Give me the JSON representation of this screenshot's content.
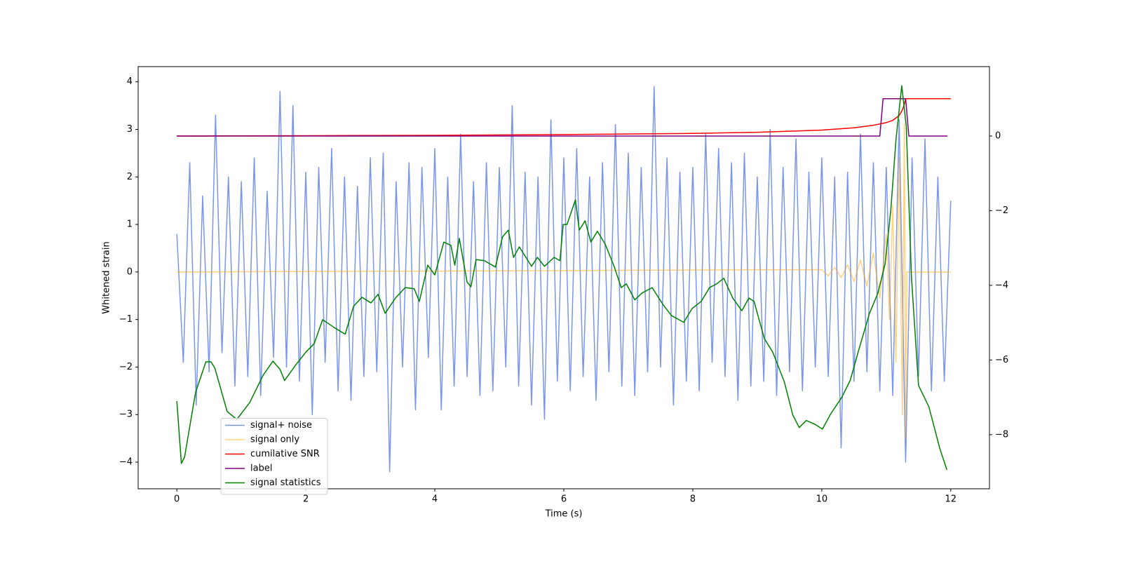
{
  "chart_data": {
    "type": "line",
    "xlabel": "Time (s)",
    "ylabel": "Whitened strain",
    "xlim": [
      -0.6,
      12.6
    ],
    "ylim": [
      -4.56,
      4.32
    ],
    "y2lim": [
      -9.45,
      1.86
    ],
    "xticks": [
      0,
      2,
      4,
      6,
      8,
      10,
      12
    ],
    "yticks": [
      {
        "value": -4,
        "label": "−4"
      },
      {
        "value": -3,
        "label": "−3"
      },
      {
        "value": -2,
        "label": "−2"
      },
      {
        "value": -1,
        "label": "−1"
      },
      0,
      1,
      2,
      3,
      4
    ],
    "y2ticks": [
      {
        "value": -8,
        "label": "−8"
      },
      {
        "value": -6,
        "label": "−6"
      },
      {
        "value": -4,
        "label": "−4"
      },
      {
        "value": -2,
        "label": "−2"
      },
      0
    ],
    "legend": "lower left",
    "series": [
      {
        "name": "signal+ noise",
        "color": "#4169e1",
        "alpha": 0.7,
        "x": [
          0,
          0.1,
          0.2,
          0.3,
          0.4,
          0.5,
          0.6,
          0.7,
          0.8,
          0.9,
          1,
          1.1,
          1.2,
          1.3,
          1.4,
          1.5,
          1.6,
          1.7,
          1.8,
          1.9,
          2,
          2.1,
          2.2,
          2.3,
          2.4,
          2.5,
          2.6,
          2.7,
          2.8,
          2.9,
          3,
          3.1,
          3.2,
          3.3,
          3.4,
          3.5,
          3.6,
          3.7,
          3.8,
          3.9,
          4,
          4.1,
          4.2,
          4.3,
          4.4,
          4.5,
          4.6,
          4.7,
          4.8,
          4.9,
          5,
          5.1,
          5.2,
          5.3,
          5.4,
          5.5,
          5.6,
          5.7,
          5.8,
          5.9,
          6,
          6.1,
          6.2,
          6.3,
          6.4,
          6.5,
          6.6,
          6.7,
          6.8,
          6.9,
          7,
          7.1,
          7.2,
          7.3,
          7.4,
          7.5,
          7.6,
          7.7,
          7.8,
          7.9,
          8,
          8.1,
          8.2,
          8.3,
          8.4,
          8.5,
          8.6,
          8.7,
          8.8,
          8.9,
          9,
          9.1,
          9.2,
          9.3,
          9.4,
          9.5,
          9.6,
          9.7,
          9.8,
          9.9,
          10,
          10.1,
          10.2,
          10.3,
          10.4,
          10.5,
          10.6,
          10.7,
          10.8,
          10.9,
          11,
          11.1,
          11.2,
          11.3,
          11.4,
          11.5,
          11.6,
          11.7,
          11.8,
          11.9,
          12
        ],
        "values": [
          0.8,
          -1.9,
          2.3,
          -2.8,
          1.6,
          -2.1,
          3.3,
          -1.7,
          2.0,
          -2.4,
          1.9,
          -2.2,
          2.4,
          -2.6,
          1.7,
          -1.8,
          3.8,
          -2.0,
          3.5,
          -2.3,
          2.1,
          -3.0,
          2.2,
          -1.9,
          2.6,
          -2.5,
          2.0,
          -2.7,
          1.8,
          -2.2,
          2.4,
          -2.1,
          2.5,
          -4.2,
          1.9,
          -2.0,
          2.3,
          -2.9,
          2.2,
          -1.8,
          2.6,
          -2.9,
          2.0,
          -2.4,
          2.9,
          -2.2,
          1.9,
          -2.6,
          2.3,
          -2.5,
          2.2,
          -2.0,
          3.5,
          -2.4,
          2.1,
          -2.8,
          2.0,
          -3.1,
          3.2,
          -2.3,
          2.4,
          -2.5,
          2.6,
          -2.2,
          2.0,
          -2.7,
          2.3,
          -2.1,
          3.1,
          -2.4,
          2.5,
          -2.6,
          2.2,
          -2.1,
          3.9,
          -2.0,
          2.4,
          -2.8,
          2.1,
          -2.3,
          2.2,
          -2.5,
          2.9,
          -1.9,
          2.6,
          -2.2,
          2.3,
          -2.7,
          2.5,
          -2.4,
          2.0,
          -2.3,
          3.0,
          -2.6,
          2.2,
          -2.1,
          2.8,
          -2.5,
          2.1,
          -2.0,
          2.4,
          -2.2,
          2.0,
          -3.7,
          2.1,
          -2.3,
          2.9,
          -2.1,
          2.3,
          -2.5,
          2.2,
          -2.6,
          3.2,
          -4.0,
          2.4,
          -2.2,
          2.8,
          -2.5,
          2.0,
          -2.3,
          1.5
        ]
      },
      {
        "name": "signal only",
        "color": "#ffa500",
        "alpha": 0.5,
        "x": [
          0,
          10.0,
          10.1,
          10.2,
          10.3,
          10.4,
          10.5,
          10.6,
          10.7,
          10.8,
          10.9,
          11.0,
          11.05,
          11.1,
          11.15,
          11.2,
          11.25,
          11.28,
          11.3,
          11.32,
          12
        ],
        "values": [
          0,
          0.05,
          -0.08,
          0.1,
          -0.12,
          0.15,
          -0.2,
          0.25,
          -0.3,
          0.4,
          -0.55,
          0.8,
          -1.0,
          1.4,
          -1.9,
          2.4,
          -3.0,
          3.1,
          -3.5,
          0,
          0
        ]
      },
      {
        "name": "cumilative SNR",
        "color": "#ff0000",
        "alpha": 1,
        "axis": "y2",
        "x": [
          0,
          2,
          4,
          6,
          8,
          9,
          10,
          10.5,
          10.8,
          11,
          11.1,
          11.2,
          11.25,
          11.28,
          11.3,
          12
        ],
        "values": [
          0,
          0.01,
          0.02,
          0.04,
          0.07,
          0.1,
          0.16,
          0.22,
          0.29,
          0.36,
          0.42,
          0.55,
          0.7,
          0.85,
          1.0,
          1.0
        ]
      },
      {
        "name": "label",
        "color": "#800080",
        "alpha": 1,
        "axis": "y2",
        "x": [
          0,
          10.9,
          10.95,
          11.3,
          11.35,
          11.95
        ],
        "values": [
          0,
          0,
          1,
          1,
          0,
          0
        ]
      },
      {
        "name": "signal statistics",
        "color": "#008000",
        "alpha": 1,
        "axis": "y2",
        "x": [
          0,
          0.07,
          0.12,
          0.29,
          0.45,
          0.53,
          0.59,
          0.78,
          0.93,
          1.13,
          1.34,
          1.49,
          1.6,
          1.67,
          1.84,
          2.0,
          2.13,
          2.26,
          2.44,
          2.61,
          2.74,
          2.87,
          3.01,
          3.12,
          3.23,
          3.39,
          3.54,
          3.68,
          3.76,
          3.89,
          4.0,
          4.14,
          4.25,
          4.31,
          4.38,
          4.5,
          4.56,
          4.64,
          4.77,
          4.94,
          5.05,
          5.14,
          5.22,
          5.31,
          5.5,
          5.59,
          5.7,
          5.85,
          5.94,
          5.99,
          6.05,
          6.18,
          6.24,
          6.33,
          6.42,
          6.52,
          6.64,
          6.78,
          6.89,
          6.97,
          7.1,
          7.21,
          7.37,
          7.54,
          7.67,
          7.86,
          7.99,
          8.13,
          8.26,
          8.37,
          8.48,
          8.62,
          8.76,
          8.87,
          8.95,
          9.11,
          9.24,
          9.42,
          9.55,
          9.65,
          9.76,
          9.89,
          10.01,
          10.14,
          10.31,
          10.44,
          10.58,
          10.74,
          10.87,
          10.98,
          11.07,
          11.15,
          11.24,
          11.31,
          11.39,
          11.5,
          11.66,
          11.83,
          11.94
        ],
        "values": [
          -7.1,
          -8.77,
          -8.6,
          -6.87,
          -6.05,
          -6.05,
          -6.22,
          -7.38,
          -7.59,
          -7.14,
          -6.4,
          -6.03,
          -6.25,
          -6.55,
          -6.14,
          -5.79,
          -5.56,
          -4.92,
          -5.13,
          -5.31,
          -4.56,
          -4.32,
          -4.47,
          -4.24,
          -4.75,
          -4.34,
          -4.06,
          -4.09,
          -4.43,
          -3.46,
          -3.72,
          -2.84,
          -2.93,
          -3.46,
          -2.74,
          -3.91,
          -4.04,
          -3.31,
          -3.34,
          -3.51,
          -2.7,
          -2.52,
          -3.25,
          -2.97,
          -3.49,
          -3.25,
          -3.49,
          -3.25,
          -3.34,
          -2.37,
          -2.37,
          -1.71,
          -2.52,
          -2.27,
          -2.84,
          -2.55,
          -2.89,
          -3.49,
          -4.06,
          -3.96,
          -4.39,
          -4.21,
          -4.06,
          -4.52,
          -4.81,
          -4.99,
          -4.62,
          -4.43,
          -4.06,
          -3.96,
          -3.81,
          -4.34,
          -4.68,
          -4.34,
          -4.43,
          -5.43,
          -5.79,
          -6.59,
          -7.47,
          -7.81,
          -7.62,
          -7.72,
          -7.85,
          -7.44,
          -7.0,
          -6.55,
          -5.69,
          -4.75,
          -4.21,
          -3.44,
          -1.99,
          -0.11,
          1.35,
          0.26,
          -3.77,
          -6.68,
          -7.25,
          -8.37,
          -8.94
        ]
      }
    ]
  }
}
